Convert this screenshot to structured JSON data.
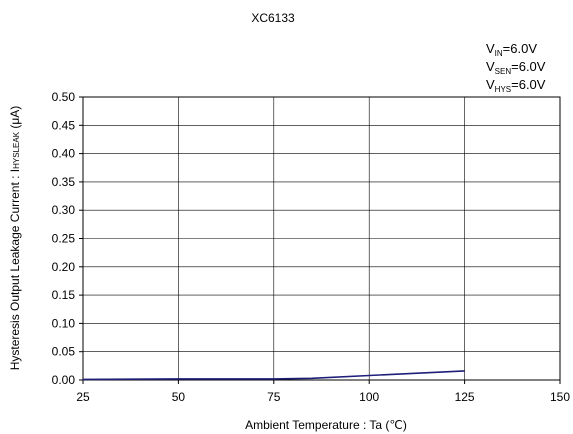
{
  "chart_data": {
    "type": "line",
    "title": "XC6133",
    "xlabel": "Ambient Temperature : Ta (℃)",
    "ylabel": "Hysteresis Output Leakage Current : I",
    "ylabel_sub": "HYSLEAK",
    "ylabel_unit": " (μA)",
    "xlim": [
      25,
      150
    ],
    "ylim": [
      0,
      0.5
    ],
    "x_ticks": [
      25,
      50,
      75,
      100,
      125,
      150
    ],
    "y_ticks": [
      0.0,
      0.05,
      0.1,
      0.15,
      0.2,
      0.25,
      0.3,
      0.35,
      0.4,
      0.45,
      0.5
    ],
    "grid": true,
    "series": [
      {
        "x": [
          25,
          50,
          75,
          85,
          100,
          125
        ],
        "y": [
          0.001,
          0.002,
          0.002,
          0.003,
          0.008,
          0.016
        ],
        "color": "#1f1f7a"
      }
    ]
  },
  "conditions": [
    {
      "label": "V",
      "sub": "IN",
      "value": "=6.0V"
    },
    {
      "label": "V",
      "sub": "SEN",
      "value": "=6.0V"
    },
    {
      "label": "V",
      "sub": "HYS",
      "value": "=6.0V"
    }
  ]
}
